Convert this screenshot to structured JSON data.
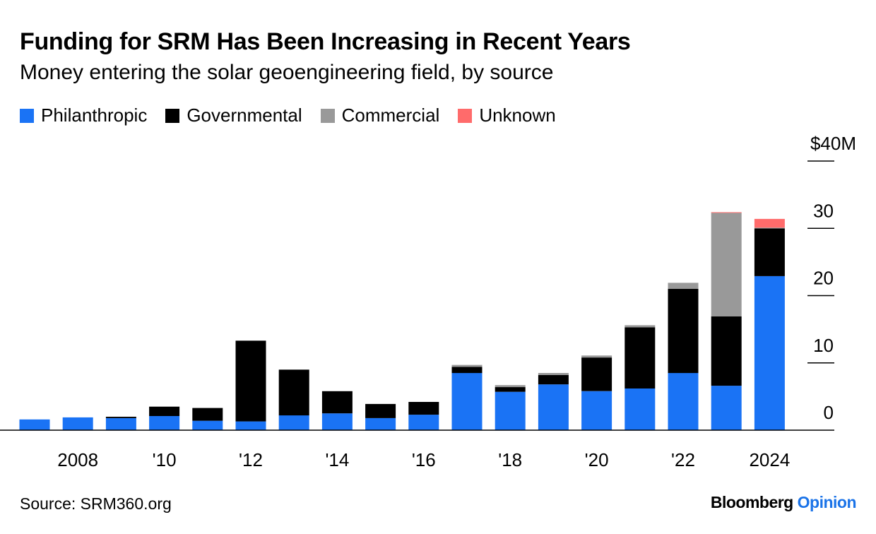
{
  "title": "Funding for SRM Has Been Increasing in Recent Years",
  "subtitle": "Money entering the solar geoengineering field, by source",
  "source": "Source: SRM360.org",
  "brand": {
    "name": "Bloomberg",
    "section": "Opinion"
  },
  "colors": {
    "Philanthropic": "#1a73f5",
    "Governmental": "#000000",
    "Commercial": "#999999",
    "Unknown": "#ff6b6b"
  },
  "chart_data": {
    "type": "bar",
    "stacked": true,
    "title": "Funding for SRM Has Been Increasing in Recent Years",
    "subtitle": "Money entering the solar geoengineering field, by source",
    "years": [
      2007,
      2008,
      2009,
      2010,
      2011,
      2012,
      2013,
      2014,
      2015,
      2016,
      2017,
      2018,
      2019,
      2020,
      2021,
      2022,
      2023,
      2024
    ],
    "x_tick_labels": [
      {
        "year": 2008,
        "label": "2008"
      },
      {
        "year": 2010,
        "label": "'10"
      },
      {
        "year": 2012,
        "label": "'12"
      },
      {
        "year": 2014,
        "label": "'14"
      },
      {
        "year": 2016,
        "label": "'16"
      },
      {
        "year": 2018,
        "label": "'18"
      },
      {
        "year": 2020,
        "label": "'20"
      },
      {
        "year": 2022,
        "label": "'22"
      },
      {
        "year": 2024,
        "label": "2024"
      }
    ],
    "y_ticks": [
      {
        "value": 0,
        "label": "0"
      },
      {
        "value": 10,
        "label": "10"
      },
      {
        "value": 20,
        "label": "20"
      },
      {
        "value": 30,
        "label": "30"
      },
      {
        "value": 40,
        "label": "$40M"
      }
    ],
    "ylim": [
      0,
      40
    ],
    "y_axis_side": "right",
    "legend_position": "top-left",
    "series": [
      {
        "name": "Philanthropic",
        "values": [
          1.6,
          1.9,
          1.8,
          2.1,
          1.4,
          1.3,
          2.2,
          2.5,
          1.8,
          2.3,
          8.5,
          5.7,
          6.8,
          5.8,
          6.2,
          8.5,
          6.6,
          22.9
        ]
      },
      {
        "name": "Governmental",
        "values": [
          0,
          0,
          0.2,
          1.4,
          1.9,
          12.0,
          6.8,
          3.3,
          2.1,
          1.9,
          0.9,
          0.7,
          1.4,
          5.0,
          9.1,
          12.5,
          10.3,
          7.1
        ]
      },
      {
        "name": "Commercial",
        "values": [
          0,
          0,
          0,
          0,
          0,
          0,
          0,
          0,
          0,
          0,
          0.3,
          0.3,
          0.3,
          0.3,
          0.3,
          0.9,
          15.4,
          0.1
        ]
      },
      {
        "name": "Unknown",
        "values": [
          0,
          0,
          0,
          0,
          0,
          0,
          0,
          0,
          0,
          0,
          0,
          0,
          0,
          0,
          0,
          0,
          0.1,
          1.3
        ]
      }
    ]
  }
}
